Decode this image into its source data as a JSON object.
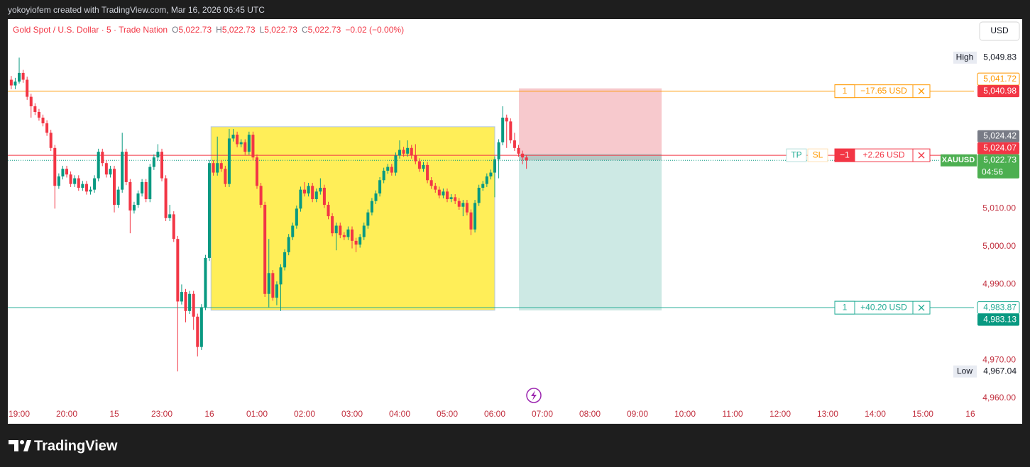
{
  "header": {
    "title": "yokoyiofem created with TradingView.com, Mar 16, 2026 06:45 UTC"
  },
  "footer": {
    "brand": "TradingView"
  },
  "chart_data": {
    "type": "candlestick",
    "title": "Gold Spot / U.S. Dollar · 5 · Trade Nation",
    "ohlc_legend": [
      {
        "key": "O",
        "value": "5,022.73"
      },
      {
        "key": "H",
        "value": "5,022.73"
      },
      {
        "key": "L",
        "value": "5,022.73"
      },
      {
        "key": "C",
        "value": "5,022.73"
      }
    ],
    "change": "−0.02 (−0.00%)",
    "currency": "USD",
    "symbol": "XAUUSD",
    "countdown": "04:56",
    "up_color": "#089981",
    "down_color": "#f23645",
    "x": [
      -2,
      -1,
      0,
      1,
      2,
      3,
      4,
      5,
      6,
      7,
      8,
      9,
      10,
      11,
      12,
      13,
      14,
      15,
      16,
      17,
      18,
      19,
      20,
      21,
      22,
      23,
      24,
      25,
      26,
      27,
      28,
      29,
      30,
      31,
      32,
      33,
      34,
      35,
      36,
      37,
      38,
      39,
      40,
      41,
      42,
      43,
      44,
      45,
      46,
      47,
      48,
      49,
      50,
      51,
      52,
      53,
      54,
      55,
      56,
      57,
      58,
      59,
      60,
      61,
      62,
      63,
      64,
      65,
      66,
      67,
      68,
      69,
      70,
      71,
      72,
      73,
      74,
      75,
      76,
      77,
      78,
      79,
      80,
      81,
      82,
      83,
      84,
      85,
      86,
      87,
      88,
      89,
      90,
      91,
      92,
      93,
      94,
      95,
      96,
      97,
      98,
      99,
      100,
      101,
      102,
      103,
      104,
      105,
      106,
      107,
      108,
      109,
      110,
      111,
      112,
      113,
      114,
      115,
      116,
      117,
      118,
      119,
      120,
      121,
      122,
      123,
      124,
      125,
      126,
      127,
      128
    ],
    "open": [
      5044.0,
      5042.5,
      5043.5,
      5045.8,
      5044.0,
      5039.5,
      5037.0,
      5035.5,
      5034.0,
      5032.5,
      5030.0,
      5026.0,
      5016.0,
      5018.5,
      5020.5,
      5019.0,
      5016.5,
      5018.0,
      5015.5,
      5016.5,
      5014.5,
      5015.0,
      5018.0,
      5025.0,
      5022.0,
      5019.0,
      5020.5,
      5011.0,
      5015.0,
      5025.0,
      5017.0,
      5009.5,
      5011.0,
      5014.0,
      5017.0,
      5012.5,
      5021.0,
      5023.5,
      5025.0,
      5018.0,
      5007.5,
      5008.5,
      5002.0,
      4985.5,
      4988.0,
      4983.0,
      4987.5,
      4981.5,
      4973.5,
      4984.0,
      4997.0,
      5022.0,
      5019.5,
      5022.0,
      5020.5,
      5016.5,
      5028.5,
      5029.5,
      5027.0,
      5027.5,
      5025.0,
      5029.5,
      5023.5,
      5016.0,
      5011.0,
      4987.5,
      4993.0,
      4986.5,
      4990.0,
      4994.5,
      4998.5,
      5002.5,
      5005.5,
      5010.0,
      5015.0,
      5014.0,
      5016.0,
      5012.5,
      5014.5,
      5015.5,
      5011.0,
      5008.0,
      5003.5,
      5005.5,
      5003.0,
      5002.5,
      5004.5,
      5001.5,
      5000.5,
      5002.5,
      5005.5,
      5009.0,
      5012.0,
      5014.0,
      5017.5,
      5020.0,
      5021.0,
      5019.5,
      5024.0,
      5025.5,
      5024.5,
      5026.0,
      5024.0,
      5022.5,
      5020.5,
      5021.5,
      5017.5,
      5016.0,
      5015.0,
      5013.5,
      5014.5,
      5012.5,
      5013.0,
      5012.0,
      5010.5,
      5011.5,
      5009.0,
      5004.5,
      5011.5,
      5015.5,
      5016.5,
      5018.5,
      5019.5,
      5023.0,
      5027.5,
      5034.0,
      5033.0,
      5028.0,
      5026.0,
      5024.5,
      5023.5
    ],
    "high": [
      5045.0,
      5044.5,
      5049.83,
      5046.6,
      5044.8,
      5040.3,
      5037.8,
      5036.3,
      5034.8,
      5033.3,
      5030.8,
      5026.8,
      5019.3,
      5021.3,
      5021.3,
      5019.8,
      5018.8,
      5018.8,
      5017.3,
      5017.3,
      5015.8,
      5018.8,
      5025.8,
      5025.8,
      5022.8,
      5021.3,
      5021.3,
      5015.8,
      5030.0,
      5025.8,
      5017.8,
      5011.8,
      5014.8,
      5017.8,
      5017.8,
      5021.8,
      5024.3,
      5027.0,
      5025.8,
      5018.8,
      5011.0,
      5009.3,
      5002.8,
      4990.0,
      4988.8,
      4988.3,
      4988.3,
      4982.3,
      4984.8,
      4997.8,
      5022.8,
      5022.8,
      5029.0,
      5022.8,
      5021.3,
      5031.0,
      5031.0,
      5030.3,
      5028.3,
      5028.3,
      5030.3,
      5030.3,
      5024.3,
      5016.8,
      5011.8,
      5002.0,
      4993.8,
      4990.8,
      4995.3,
      4999.3,
      5003.3,
      5006.3,
      5010.8,
      5015.8,
      5017.0,
      5016.8,
      5016.8,
      5015.3,
      5018.0,
      5016.3,
      5011.8,
      5008.8,
      5006.3,
      5006.3,
      5003.8,
      5005.3,
      5005.3,
      5002.3,
      5003.3,
      5006.3,
      5009.8,
      5012.8,
      5014.8,
      5018.3,
      5020.8,
      5021.8,
      5021.8,
      5024.8,
      5028.0,
      5026.3,
      5028.0,
      5026.8,
      5027.0,
      5023.3,
      5022.3,
      5022.3,
      5018.3,
      5016.8,
      5015.8,
      5015.3,
      5015.3,
      5013.8,
      5013.8,
      5012.8,
      5012.3,
      5012.3,
      5009.8,
      5012.3,
      5016.3,
      5017.3,
      5019.3,
      5020.3,
      5023.8,
      5028.3,
      5037.0,
      5034.8,
      5033.8,
      5030.0,
      5026.8,
      5025.3,
      5024.0
    ],
    "low": [
      5041.5,
      5041.5,
      5043.0,
      5043.2,
      5038.7,
      5034.0,
      5034.7,
      5033.2,
      5031.7,
      5029.2,
      5025.2,
      5010.0,
      5015.2,
      5017.7,
      5018.2,
      5015.7,
      5015.7,
      5014.7,
      5014.7,
      5013.7,
      5013.7,
      5014.2,
      5017.2,
      5021.2,
      5018.2,
      5018.2,
      5009.0,
      5010.2,
      5014.2,
      5016.2,
      5003.5,
      5008.7,
      5010.2,
      5013.2,
      5011.7,
      5011.7,
      5020.2,
      5022.7,
      5017.2,
      5006.7,
      5006.7,
      5001.2,
      4967.04,
      4984.7,
      4980.0,
      4982.2,
      4978.0,
      4971.0,
      4972.7,
      4983.2,
      4996.2,
      5018.7,
      5018.7,
      5019.7,
      5015.7,
      5015.7,
      5027.7,
      5026.2,
      5026.2,
      5024.2,
      5024.2,
      5022.7,
      5015.2,
      5010.2,
      4986.7,
      4984.0,
      4985.7,
      4984.5,
      4983.0,
      4993.7,
      4997.7,
      5001.7,
      5004.7,
      5009.2,
      5013.2,
      5013.2,
      5011.7,
      5011.7,
      5013.7,
      5010.2,
      5007.2,
      5002.7,
      4999.0,
      5002.2,
      5001.7,
      5001.7,
      4999.5,
      4998.5,
      4999.7,
      5001.7,
      5004.7,
      5008.2,
      5011.2,
      5013.2,
      5016.7,
      5019.2,
      5018.7,
      5018.7,
      5023.2,
      5023.7,
      5023.7,
      5023.2,
      5021.7,
      5019.7,
      5019.7,
      5016.7,
      5015.2,
      5014.2,
      5012.7,
      5012.7,
      5011.7,
      5011.7,
      5011.2,
      5009.7,
      5008.0,
      5008.2,
      5003.0,
      5003.7,
      5010.7,
      5014.7,
      5015.7,
      5017.7,
      5013.0,
      5018.0,
      5026.7,
      5026.0,
      5027.2,
      5025.2,
      5023.7,
      5021.7,
      5020.5
    ],
    "close": [
      5042.5,
      5043.5,
      5045.8,
      5044.0,
      5039.5,
      5037.0,
      5035.5,
      5034.0,
      5032.5,
      5030.0,
      5026.0,
      5016.0,
      5018.5,
      5020.5,
      5019.0,
      5016.5,
      5018.0,
      5015.5,
      5016.5,
      5014.5,
      5015.0,
      5018.0,
      5025.0,
      5022.0,
      5019.0,
      5020.5,
      5011.0,
      5015.0,
      5025.0,
      5017.0,
      5009.5,
      5011.0,
      5014.0,
      5017.0,
      5012.5,
      5021.0,
      5023.5,
      5025.0,
      5018.0,
      5007.5,
      5008.5,
      5002.0,
      4985.5,
      4988.0,
      4983.0,
      4987.5,
      4981.5,
      4973.5,
      4984.0,
      4997.0,
      5022.0,
      5019.5,
      5022.0,
      5020.5,
      5016.5,
      5028.5,
      5029.5,
      5027.0,
      5027.5,
      5025.0,
      5029.5,
      5023.5,
      5016.0,
      5011.0,
      4987.5,
      4993.0,
      4986.5,
      4990.0,
      4994.5,
      4998.5,
      5002.5,
      5005.5,
      5010.0,
      5015.0,
      5014.0,
      5016.0,
      5012.5,
      5014.5,
      5015.5,
      5011.0,
      5008.0,
      5003.5,
      5005.5,
      5003.0,
      5002.5,
      5004.5,
      5001.5,
      5000.5,
      5002.5,
      5005.5,
      5009.0,
      5012.0,
      5014.0,
      5017.5,
      5020.0,
      5021.0,
      5019.5,
      5024.0,
      5025.5,
      5024.5,
      5026.0,
      5024.0,
      5022.5,
      5020.5,
      5021.5,
      5017.5,
      5016.0,
      5015.0,
      5013.5,
      5014.5,
      5012.5,
      5013.0,
      5012.0,
      5010.5,
      5011.5,
      5009.0,
      5004.5,
      5011.5,
      5015.5,
      5016.5,
      5018.5,
      5019.5,
      5023.0,
      5027.5,
      5034.0,
      5033.0,
      5028.0,
      5026.0,
      5024.5,
      5023.5,
      5022.73
    ],
    "xlim": [
      -2.87,
      240.9
    ],
    "xticks": [
      {
        "value": 0,
        "label": "19:00"
      },
      {
        "value": 12,
        "label": "20:00"
      },
      {
        "value": 24,
        "label": "15"
      },
      {
        "value": 36,
        "label": "23:00"
      },
      {
        "value": 48,
        "label": "16"
      },
      {
        "value": 60,
        "label": "01:00"
      },
      {
        "value": 72,
        "label": "02:00"
      },
      {
        "value": 84,
        "label": "03:00"
      },
      {
        "value": 96,
        "label": "04:00"
      },
      {
        "value": 108,
        "label": "05:00"
      },
      {
        "value": 120,
        "label": "06:00"
      },
      {
        "value": 132,
        "label": "07:00"
      },
      {
        "value": 144,
        "label": "08:00"
      },
      {
        "value": 156,
        "label": "09:00"
      },
      {
        "value": 168,
        "label": "10:00"
      },
      {
        "value": 180,
        "label": "11:00"
      },
      {
        "value": 192,
        "label": "12:00"
      },
      {
        "value": 204,
        "label": "13:00"
      },
      {
        "value": 216,
        "label": "14:00"
      },
      {
        "value": 228,
        "label": "15:00"
      },
      {
        "value": 240,
        "label": "16"
      }
    ],
    "ylim": [
      4958.1,
      5059.8
    ],
    "yticks": [
      {
        "value": 4960,
        "label": "4,960.00"
      },
      {
        "value": 4970,
        "label": "4,970.00"
      },
      {
        "value": 4990,
        "label": "4,990.00"
      },
      {
        "value": 5000,
        "label": "5,000.00"
      },
      {
        "value": 5010,
        "label": "5,010.00"
      }
    ],
    "grid": false,
    "rectangle": {
      "x": [
        48.4,
        120.0
      ],
      "y": [
        4983.2,
        5031.6
      ],
      "color": "#ffeb3b"
    },
    "position": {
      "x": [
        126.1,
        162.1
      ],
      "entry": 5024.42,
      "stop": 5041.72,
      "target": 4983.13,
      "stop_color": "#f7c9cd",
      "target_color": "#cde9e4"
    },
    "orders": [
      {
        "value": 5040.98,
        "qty": "1",
        "pnl": "−17.65 USD",
        "color": "#ff9800"
      },
      {
        "value": 5024.07,
        "tp": "TP",
        "sl": "SL",
        "qty": "−1",
        "pnl": "+2.26 USD",
        "color": "#f23645"
      },
      {
        "value": 4983.87,
        "qty": "1",
        "pnl": "+40.20 USD",
        "color": "#22ab94"
      }
    ],
    "price_tags": [
      {
        "value": 5049.83,
        "label": "5,049.83",
        "caption": "High",
        "style": "plain"
      },
      {
        "value": 5041.72,
        "label": "5,041.72",
        "color": "#ff9800",
        "style": "outline"
      },
      {
        "value": 5040.98,
        "label": "5,040.98",
        "color": "#f23645",
        "style": "fill"
      },
      {
        "value": 5024.42,
        "label": "5,024.42",
        "color": "#787b86",
        "style": "fill"
      },
      {
        "value": 5024.07,
        "label": "5,024.07",
        "color": "#f23645",
        "style": "fill"
      },
      {
        "value": 5022.73,
        "label": "5,022.73",
        "color": "#4caf50",
        "style": "fill",
        "current": true
      },
      {
        "value": 4983.87,
        "label": "4,983.87",
        "color": "#22ab94",
        "style": "outline"
      },
      {
        "value": 4983.13,
        "label": "4,983.13",
        "color": "#089981",
        "style": "fill"
      },
      {
        "value": 4967.04,
        "label": "4,967.04",
        "caption": "Low",
        "style": "plain"
      }
    ]
  }
}
